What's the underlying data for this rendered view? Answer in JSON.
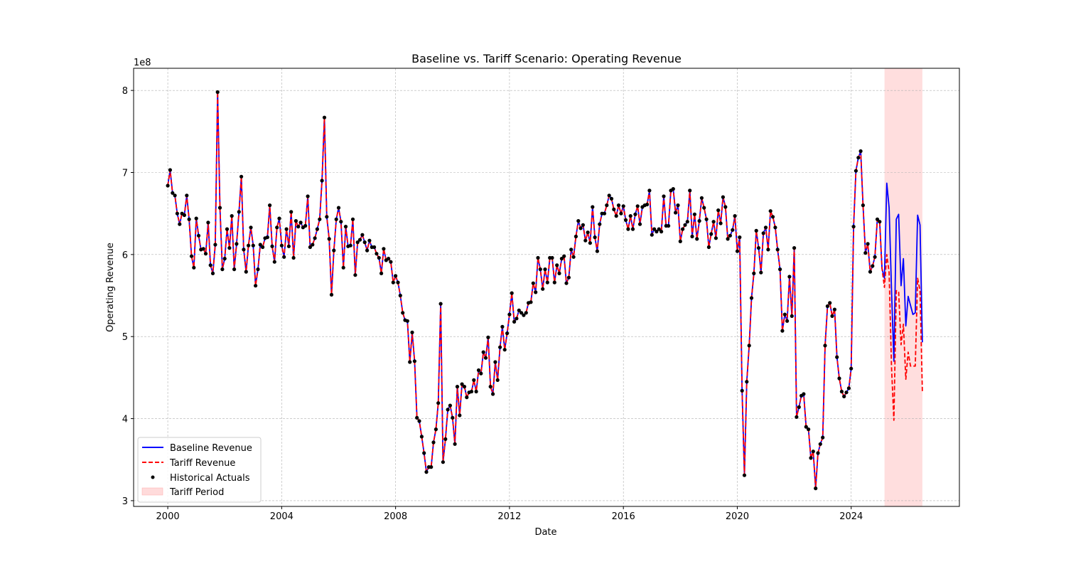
{
  "chart_data": {
    "type": "line",
    "title": "Baseline vs. Tariff Scenario: Operating Revenue",
    "xlabel": "Date",
    "ylabel": "Operating Revenue",
    "y_offset_label": "1e8",
    "xlim": [
      1998.8,
      2027.8
    ],
    "ylim": [
      2.93,
      8.27
    ],
    "x_ticks": [
      2000,
      2004,
      2008,
      2012,
      2016,
      2020,
      2024
    ],
    "x_tick_labels": [
      "2000",
      "2004",
      "2008",
      "2012",
      "2016",
      "2020",
      "2024"
    ],
    "y_ticks": [
      3,
      4,
      5,
      6,
      7,
      8
    ],
    "y_tick_labels": [
      "3",
      "4",
      "5",
      "6",
      "7",
      "8"
    ],
    "grid": true,
    "legend": {
      "position": "lower-left",
      "entries": [
        "Baseline Revenue",
        "Tariff Revenue",
        "Historical Actuals",
        "Tariff Period"
      ]
    },
    "colors": {
      "baseline": "#0000ff",
      "tariff": "#ff0000",
      "actuals": "#000000",
      "tariff_period": "#ffcccc"
    },
    "tariff_period": [
      2025.17,
      2026.5
    ],
    "historical_anchor_points": [
      [
        2000.0,
        6.84
      ],
      [
        2000.083,
        7.03
      ],
      [
        2000.167,
        6.75
      ],
      [
        2000.25,
        6.72
      ],
      [
        2000.333,
        6.5
      ],
      [
        2000.417,
        6.37
      ],
      [
        2000.5,
        6.5
      ],
      [
        2000.583,
        6.48
      ],
      [
        2000.667,
        6.72
      ],
      [
        2000.75,
        6.43
      ],
      [
        2000.833,
        5.98
      ],
      [
        2000.917,
        5.84
      ],
      [
        2001.0,
        6.44
      ],
      [
        2001.083,
        6.23
      ],
      [
        2001.167,
        6.06
      ],
      [
        2001.25,
        6.07
      ],
      [
        2001.333,
        6.01
      ],
      [
        2001.417,
        6.39
      ],
      [
        2001.5,
        5.87
      ],
      [
        2001.583,
        5.77
      ],
      [
        2001.667,
        6.12
      ],
      [
        2001.75,
        7.98
      ],
      [
        2001.833,
        6.57
      ],
      [
        2001.917,
        5.82
      ],
      [
        2002.0,
        5.95
      ],
      [
        2002.083,
        6.31
      ],
      [
        2002.167,
        6.08
      ],
      [
        2002.25,
        6.47
      ],
      [
        2002.333,
        5.82
      ],
      [
        2002.417,
        6.13
      ],
      [
        2002.5,
        6.52
      ],
      [
        2002.583,
        6.95
      ],
      [
        2002.667,
        6.06
      ],
      [
        2002.75,
        5.79
      ],
      [
        2002.833,
        6.11
      ],
      [
        2002.917,
        6.33
      ],
      [
        2003.0,
        6.11
      ],
      [
        2003.083,
        5.62
      ],
      [
        2003.167,
        5.82
      ],
      [
        2003.25,
        6.12
      ],
      [
        2003.333,
        6.09
      ],
      [
        2003.417,
        6.2
      ],
      [
        2003.5,
        6.21
      ],
      [
        2003.583,
        6.6
      ],
      [
        2003.667,
        6.1
      ],
      [
        2003.75,
        5.91
      ],
      [
        2003.833,
        6.33
      ],
      [
        2003.917,
        6.44
      ],
      [
        2004.0,
        6.11
      ],
      [
        2004.083,
        5.97
      ],
      [
        2004.167,
        6.31
      ],
      [
        2004.25,
        6.1
      ],
      [
        2004.333,
        6.52
      ],
      [
        2004.417,
        5.96
      ],
      [
        2004.5,
        6.41
      ],
      [
        2004.583,
        6.34
      ],
      [
        2004.667,
        6.39
      ],
      [
        2004.75,
        6.33
      ],
      [
        2004.833,
        6.35
      ],
      [
        2004.917,
        6.71
      ],
      [
        2005.0,
        6.09
      ],
      [
        2005.083,
        6.12
      ],
      [
        2005.167,
        6.2
      ],
      [
        2005.25,
        6.31
      ],
      [
        2005.333,
        6.43
      ],
      [
        2005.417,
        6.9
      ],
      [
        2005.5,
        7.67
      ],
      [
        2005.583,
        6.46
      ],
      [
        2005.667,
        6.19
      ],
      [
        2005.75,
        5.51
      ],
      [
        2005.833,
        6.05
      ],
      [
        2005.917,
        6.43
      ],
      [
        2006.0,
        6.57
      ],
      [
        2006.083,
        6.4
      ],
      [
        2006.167,
        5.84
      ],
      [
        2006.25,
        6.34
      ],
      [
        2006.333,
        6.1
      ],
      [
        2006.417,
        6.11
      ],
      [
        2006.5,
        6.43
      ],
      [
        2006.583,
        5.75
      ],
      [
        2006.667,
        6.15
      ],
      [
        2006.75,
        6.18
      ],
      [
        2006.833,
        6.24
      ],
      [
        2006.917,
        6.15
      ],
      [
        2007.0,
        6.05
      ],
      [
        2007.083,
        6.17
      ],
      [
        2007.167,
        6.09
      ],
      [
        2007.25,
        6.09
      ],
      [
        2007.333,
        6.01
      ],
      [
        2007.417,
        5.96
      ],
      [
        2007.5,
        5.77
      ],
      [
        2007.583,
        6.07
      ],
      [
        2007.667,
        5.93
      ],
      [
        2007.75,
        5.95
      ],
      [
        2007.833,
        5.91
      ],
      [
        2007.917,
        5.66
      ],
      [
        2008.0,
        5.74
      ],
      [
        2008.083,
        5.66
      ],
      [
        2008.167,
        5.5
      ],
      [
        2008.25,
        5.29
      ],
      [
        2008.333,
        5.2
      ],
      [
        2008.417,
        5.19
      ],
      [
        2008.5,
        4.69
      ],
      [
        2008.583,
        5.05
      ],
      [
        2008.667,
        4.7
      ],
      [
        2008.75,
        4.01
      ],
      [
        2008.833,
        3.97
      ],
      [
        2008.917,
        3.78
      ],
      [
        2009.0,
        3.58
      ],
      [
        2009.083,
        3.35
      ],
      [
        2009.167,
        3.41
      ],
      [
        2009.25,
        3.41
      ],
      [
        2009.333,
        3.71
      ],
      [
        2009.417,
        3.87
      ],
      [
        2009.5,
        4.19
      ],
      [
        2009.583,
        5.4
      ],
      [
        2009.667,
        3.47
      ],
      [
        2009.75,
        3.75
      ],
      [
        2009.833,
        4.11
      ],
      [
        2009.917,
        4.16
      ],
      [
        2010.0,
        4.01
      ],
      [
        2010.083,
        3.69
      ],
      [
        2010.167,
        4.39
      ],
      [
        2010.25,
        4.04
      ],
      [
        2010.333,
        4.42
      ],
      [
        2010.417,
        4.39
      ],
      [
        2010.5,
        4.26
      ],
      [
        2010.583,
        4.32
      ],
      [
        2010.667,
        4.33
      ],
      [
        2010.75,
        4.47
      ],
      [
        2010.833,
        4.33
      ],
      [
        2010.917,
        4.59
      ],
      [
        2011.0,
        4.55
      ],
      [
        2011.083,
        4.81
      ],
      [
        2011.167,
        4.74
      ],
      [
        2011.25,
        4.99
      ],
      [
        2011.333,
        4.39
      ],
      [
        2011.417,
        4.3
      ],
      [
        2011.5,
        4.69
      ],
      [
        2011.583,
        4.47
      ],
      [
        2011.667,
        4.87
      ],
      [
        2011.75,
        5.12
      ],
      [
        2011.833,
        4.84
      ],
      [
        2011.917,
        5.04
      ],
      [
        2012.0,
        5.27
      ],
      [
        2012.083,
        5.53
      ],
      [
        2012.167,
        5.18
      ],
      [
        2012.25,
        5.22
      ],
      [
        2012.333,
        5.32
      ],
      [
        2012.417,
        5.29
      ],
      [
        2012.5,
        5.26
      ],
      [
        2012.583,
        5.29
      ],
      [
        2012.667,
        5.41
      ],
      [
        2012.75,
        5.42
      ],
      [
        2012.833,
        5.65
      ],
      [
        2012.917,
        5.54
      ],
      [
        2013.0,
        5.96
      ],
      [
        2013.083,
        5.82
      ],
      [
        2013.167,
        5.58
      ],
      [
        2013.25,
        5.82
      ],
      [
        2013.333,
        5.66
      ],
      [
        2013.417,
        5.96
      ],
      [
        2013.5,
        5.96
      ],
      [
        2013.583,
        5.66
      ],
      [
        2013.667,
        5.87
      ],
      [
        2013.75,
        5.77
      ],
      [
        2013.833,
        5.95
      ],
      [
        2013.917,
        5.98
      ],
      [
        2014.0,
        5.65
      ],
      [
        2014.083,
        5.72
      ],
      [
        2014.167,
        6.06
      ],
      [
        2014.25,
        5.97
      ],
      [
        2014.333,
        6.22
      ],
      [
        2014.417,
        6.41
      ],
      [
        2014.5,
        6.32
      ],
      [
        2014.583,
        6.36
      ],
      [
        2014.667,
        6.17
      ],
      [
        2014.75,
        6.27
      ],
      [
        2014.833,
        6.14
      ],
      [
        2014.917,
        6.58
      ],
      [
        2015.0,
        6.21
      ],
      [
        2015.083,
        6.04
      ],
      [
        2015.167,
        6.37
      ],
      [
        2015.25,
        6.5
      ],
      [
        2015.333,
        6.5
      ],
      [
        2015.417,
        6.6
      ],
      [
        2015.5,
        6.72
      ],
      [
        2015.583,
        6.68
      ],
      [
        2015.667,
        6.55
      ],
      [
        2015.75,
        6.47
      ],
      [
        2015.833,
        6.6
      ],
      [
        2015.917,
        6.5
      ],
      [
        2016.0,
        6.59
      ],
      [
        2016.083,
        6.42
      ],
      [
        2016.167,
        6.31
      ],
      [
        2016.25,
        6.47
      ],
      [
        2016.333,
        6.31
      ],
      [
        2016.417,
        6.49
      ],
      [
        2016.5,
        6.59
      ],
      [
        2016.583,
        6.37
      ],
      [
        2016.667,
        6.58
      ],
      [
        2016.75,
        6.6
      ],
      [
        2016.833,
        6.61
      ],
      [
        2016.917,
        6.78
      ],
      [
        2017.0,
        6.24
      ],
      [
        2017.083,
        6.31
      ],
      [
        2017.167,
        6.28
      ],
      [
        2017.25,
        6.31
      ],
      [
        2017.333,
        6.28
      ],
      [
        2017.417,
        6.71
      ],
      [
        2017.5,
        6.35
      ],
      [
        2017.583,
        6.35
      ],
      [
        2017.667,
        6.78
      ],
      [
        2017.75,
        6.8
      ],
      [
        2017.833,
        6.51
      ],
      [
        2017.917,
        6.6
      ],
      [
        2018.0,
        6.16
      ],
      [
        2018.083,
        6.31
      ],
      [
        2018.167,
        6.36
      ],
      [
        2018.25,
        6.4
      ],
      [
        2018.333,
        6.78
      ],
      [
        2018.417,
        6.22
      ],
      [
        2018.5,
        6.49
      ],
      [
        2018.583,
        6.19
      ],
      [
        2018.667,
        6.41
      ],
      [
        2018.75,
        6.69
      ],
      [
        2018.833,
        6.57
      ],
      [
        2018.917,
        6.43
      ],
      [
        2019.0,
        6.09
      ],
      [
        2019.083,
        6.25
      ],
      [
        2019.167,
        6.4
      ],
      [
        2019.25,
        6.2
      ],
      [
        2019.333,
        6.54
      ],
      [
        2019.417,
        6.38
      ],
      [
        2019.5,
        6.7
      ],
      [
        2019.583,
        6.58
      ],
      [
        2019.667,
        6.19
      ],
      [
        2019.75,
        6.23
      ],
      [
        2019.833,
        6.3
      ],
      [
        2019.917,
        6.47
      ],
      [
        2020.0,
        6.04
      ],
      [
        2020.083,
        6.21
      ],
      [
        2020.167,
        4.34
      ],
      [
        2020.25,
        3.31
      ],
      [
        2020.333,
        4.45
      ],
      [
        2020.417,
        4.89
      ],
      [
        2020.5,
        5.47
      ],
      [
        2020.583,
        5.77
      ],
      [
        2020.667,
        6.29
      ],
      [
        2020.75,
        6.08
      ],
      [
        2020.833,
        5.78
      ],
      [
        2020.917,
        6.26
      ],
      [
        2021.0,
        6.33
      ],
      [
        2021.083,
        6.06
      ],
      [
        2021.167,
        6.53
      ],
      [
        2021.25,
        6.46
      ],
      [
        2021.333,
        6.33
      ],
      [
        2021.417,
        6.06
      ],
      [
        2021.5,
        5.82
      ],
      [
        2021.583,
        5.07
      ],
      [
        2021.667,
        5.27
      ],
      [
        2021.75,
        5.19
      ],
      [
        2021.833,
        5.73
      ],
      [
        2021.917,
        5.25
      ],
      [
        2022.0,
        6.08
      ],
      [
        2022.083,
        4.02
      ],
      [
        2022.167,
        4.14
      ],
      [
        2022.25,
        4.28
      ],
      [
        2022.333,
        4.3
      ],
      [
        2022.417,
        3.9
      ],
      [
        2022.5,
        3.87
      ],
      [
        2022.583,
        3.52
      ],
      [
        2022.667,
        3.6
      ],
      [
        2022.75,
        3.15
      ],
      [
        2022.833,
        3.58
      ],
      [
        2022.917,
        3.69
      ],
      [
        2023.0,
        3.77
      ],
      [
        2023.083,
        4.89
      ],
      [
        2023.167,
        5.37
      ],
      [
        2023.25,
        5.41
      ],
      [
        2023.333,
        5.25
      ],
      [
        2023.417,
        5.33
      ],
      [
        2023.5,
        4.75
      ],
      [
        2023.583,
        4.49
      ],
      [
        2023.667,
        4.33
      ],
      [
        2023.75,
        4.27
      ],
      [
        2023.833,
        4.32
      ],
      [
        2023.917,
        4.37
      ],
      [
        2024.0,
        4.61
      ],
      [
        2024.083,
        6.34
      ],
      [
        2024.167,
        7.02
      ],
      [
        2024.25,
        7.18
      ],
      [
        2024.333,
        7.26
      ],
      [
        2024.417,
        6.6
      ],
      [
        2024.5,
        6.02
      ],
      [
        2024.583,
        6.13
      ],
      [
        2024.667,
        5.79
      ],
      [
        2024.75,
        5.86
      ],
      [
        2024.833,
        5.97
      ],
      [
        2024.917,
        6.43
      ],
      [
        2025.0,
        6.4
      ]
    ],
    "forecast_x": [
      2025.083,
      2025.167,
      2025.25,
      2025.333,
      2025.417,
      2025.5,
      2025.583,
      2025.667,
      2025.75,
      2025.833,
      2025.917,
      2026.0,
      2026.083,
      2026.167,
      2026.25,
      2026.333,
      2026.417,
      2026.5
    ],
    "baseline_forecast": [
      5.83,
      5.71,
      6.87,
      6.57,
      5.56,
      4.7,
      6.43,
      6.49,
      5.62,
      5.95,
      5.13,
      5.49,
      5.38,
      5.27,
      5.29,
      6.48,
      6.36,
      4.93
    ],
    "tariff_forecast": [
      5.83,
      5.6,
      6.0,
      5.78,
      4.62,
      3.98,
      5.56,
      5.55,
      4.9,
      5.15,
      4.48,
      4.81,
      4.64,
      4.64,
      4.64,
      5.71,
      5.56,
      4.33
    ]
  }
}
